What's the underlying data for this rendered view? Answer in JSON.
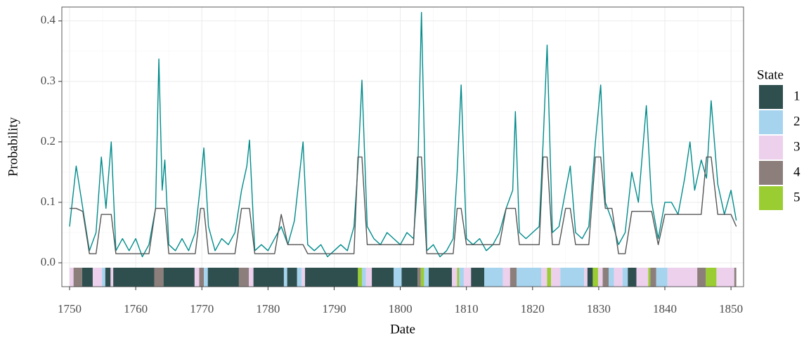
{
  "chart_data": {
    "type": "line",
    "xlabel": "Date",
    "ylabel": "Probability",
    "xlim": [
      1748.83,
      1851.9
    ],
    "ylim": [
      -0.0395,
      0.423
    ],
    "xticks": [
      1750,
      1760,
      1770,
      1780,
      1790,
      1800,
      1810,
      1820,
      1830,
      1840,
      1850
    ],
    "yticks": [
      {
        "value": 0,
        "label": "0.0"
      },
      0.1,
      0.2,
      0.3,
      0.4
    ],
    "x_minor_ticks": [
      1755,
      1765,
      1775,
      1785,
      1795,
      1805,
      1815,
      1825,
      1835,
      1845
    ],
    "y_minor_ticks": [
      0.05,
      0.15,
      0.25,
      0.35
    ],
    "grid": true,
    "x": [
      1750,
      1751,
      1752,
      1753,
      1754,
      1754.8,
      1755.5,
      1756.3,
      1757,
      1758,
      1759,
      1760,
      1761,
      1762,
      1763,
      1763.5,
      1764,
      1764.4,
      1765,
      1766,
      1767,
      1768,
      1769,
      1769.8,
      1770.3,
      1771,
      1772,
      1773,
      1774,
      1775,
      1776,
      1776.8,
      1777.2,
      1778,
      1779,
      1780,
      1781,
      1782,
      1783,
      1784,
      1785.3,
      1786,
      1787,
      1788,
      1789,
      1790,
      1791,
      1792,
      1793,
      1793.6,
      1794.2,
      1795,
      1796,
      1797,
      1798,
      1799,
      1800,
      1801,
      1802,
      1802.6,
      1803.2,
      1804,
      1805,
      1806,
      1807,
      1808,
      1808.6,
      1809.2,
      1810,
      1811,
      1812,
      1813,
      1814,
      1815,
      1816,
      1817,
      1817.4,
      1818,
      1819,
      1820,
      1821,
      1821.6,
      1822.2,
      1823,
      1824,
      1825,
      1825.7,
      1826.5,
      1827.5,
      1828.5,
      1829.5,
      1830.3,
      1831,
      1832,
      1833,
      1834,
      1835,
      1836,
      1837.2,
      1838,
      1839,
      1840,
      1841,
      1842,
      1843,
      1843.8,
      1844.5,
      1845.5,
      1846.3,
      1847,
      1848,
      1849,
      1850,
      1850.8
    ],
    "series": [
      {
        "color": "#008b8b",
        "values": [
          0.06,
          0.16,
          0.09,
          0.02,
          0.05,
          0.175,
          0.09,
          0.2,
          0.02,
          0.04,
          0.02,
          0.04,
          0.01,
          0.03,
          0.09,
          0.337,
          0.12,
          0.17,
          0.03,
          0.02,
          0.04,
          0.02,
          0.05,
          0.13,
          0.19,
          0.06,
          0.02,
          0.04,
          0.03,
          0.05,
          0.12,
          0.16,
          0.203,
          0.02,
          0.03,
          0.02,
          0.04,
          0.06,
          0.03,
          0.07,
          0.2,
          0.03,
          0.02,
          0.03,
          0.01,
          0.02,
          0.03,
          0.02,
          0.06,
          0.16,
          0.302,
          0.06,
          0.04,
          0.03,
          0.05,
          0.04,
          0.03,
          0.05,
          0.04,
          0.13,
          0.414,
          0.02,
          0.03,
          0.01,
          0.02,
          0.04,
          0.15,
          0.294,
          0.04,
          0.03,
          0.04,
          0.02,
          0.03,
          0.05,
          0.09,
          0.12,
          0.25,
          0.05,
          0.04,
          0.05,
          0.06,
          0.2,
          0.36,
          0.05,
          0.06,
          0.12,
          0.16,
          0.05,
          0.04,
          0.06,
          0.2,
          0.294,
          0.1,
          0.07,
          0.03,
          0.05,
          0.15,
          0.1,
          0.26,
          0.1,
          0.04,
          0.1,
          0.1,
          0.08,
          0.14,
          0.2,
          0.12,
          0.17,
          0.14,
          0.268,
          0.13,
          0.08,
          0.12,
          0.07
        ]
      },
      {
        "color": "#555555",
        "values": [
          0.09,
          0.09,
          0.085,
          0.015,
          0.015,
          0.08,
          0.08,
          0.08,
          0.015,
          0.015,
          0.015,
          0.015,
          0.015,
          0.015,
          0.09,
          0.09,
          0.09,
          0.09,
          0.015,
          0.015,
          0.015,
          0.015,
          0.015,
          0.09,
          0.09,
          0.015,
          0.015,
          0.015,
          0.015,
          0.015,
          0.09,
          0.09,
          0.09,
          0.015,
          0.015,
          0.015,
          0.015,
          0.08,
          0.03,
          0.03,
          0.03,
          0.015,
          0.015,
          0.015,
          0.015,
          0.015,
          0.015,
          0.015,
          0.015,
          0.175,
          0.175,
          0.03,
          0.03,
          0.03,
          0.03,
          0.03,
          0.03,
          0.03,
          0.03,
          0.175,
          0.175,
          0.015,
          0.015,
          0.015,
          0.015,
          0.015,
          0.09,
          0.09,
          0.03,
          0.03,
          0.03,
          0.03,
          0.03,
          0.03,
          0.09,
          0.09,
          0.09,
          0.03,
          0.03,
          0.03,
          0.03,
          0.175,
          0.175,
          0.03,
          0.03,
          0.09,
          0.09,
          0.03,
          0.03,
          0.03,
          0.175,
          0.175,
          0.09,
          0.09,
          0.015,
          0.015,
          0.085,
          0.085,
          0.085,
          0.085,
          0.03,
          0.08,
          0.08,
          0.08,
          0.08,
          0.08,
          0.08,
          0.08,
          0.175,
          0.175,
          0.08,
          0.08,
          0.08,
          0.06
        ]
      }
    ],
    "state_bands": {
      "starts": [
        1750.0,
        1750.6,
        1751.9,
        1753.5,
        1754.9,
        1755.4,
        1756.2,
        1756.6,
        1762.8,
        1764.2,
        1768.9,
        1769.6,
        1770.3,
        1770.9,
        1775.6,
        1777.1,
        1777.8,
        1782.4,
        1782.9,
        1784.4,
        1785.1,
        1785.6,
        1793.6,
        1794.2,
        1794.8,
        1795.7,
        1799.0,
        1800.2,
        1802.6,
        1803.1,
        1803.6,
        1804.3,
        1807.8,
        1808.6,
        1808.9,
        1809.6,
        1810.7,
        1812.7,
        1815.5,
        1816.6,
        1817.6,
        1821.3,
        1822.2,
        1822.8,
        1824.2,
        1827.8,
        1828.3,
        1829.1,
        1829.9,
        1830.6,
        1831.5,
        1832.3,
        1833.6,
        1834.4,
        1835.7,
        1837.5,
        1837.8,
        1838.7,
        1840.4,
        1844.9,
        1846.2,
        1847.8,
        1850.5
      ],
      "ends": [
        1750.6,
        1751.9,
        1753.5,
        1754.9,
        1755.4,
        1756.2,
        1756.6,
        1762.8,
        1764.2,
        1768.9,
        1769.6,
        1770.3,
        1770.9,
        1775.6,
        1777.1,
        1777.8,
        1782.4,
        1782.9,
        1784.4,
        1785.1,
        1785.6,
        1793.6,
        1794.2,
        1794.8,
        1795.7,
        1799.0,
        1800.2,
        1802.6,
        1803.1,
        1803.6,
        1804.3,
        1807.8,
        1808.6,
        1808.9,
        1809.6,
        1810.7,
        1812.7,
        1815.5,
        1816.6,
        1817.6,
        1821.3,
        1822.2,
        1822.8,
        1824.2,
        1827.8,
        1828.3,
        1829.1,
        1829.9,
        1830.6,
        1831.5,
        1832.3,
        1833.6,
        1834.4,
        1835.7,
        1837.5,
        1837.8,
        1838.7,
        1840.4,
        1844.9,
        1846.2,
        1847.8,
        1850.5,
        1850.8
      ],
      "states": [
        3,
        4,
        1,
        3,
        2,
        1,
        3,
        1,
        4,
        1,
        3,
        4,
        2,
        1,
        4,
        3,
        1,
        2,
        1,
        2,
        3,
        1,
        5,
        2,
        3,
        1,
        2,
        1,
        4,
        5,
        2,
        1,
        3,
        5,
        2,
        3,
        1,
        2,
        3,
        4,
        2,
        3,
        5,
        3,
        2,
        3,
        1,
        5,
        3,
        4,
        2,
        3,
        2,
        1,
        3,
        5,
        4,
        2,
        3,
        4,
        5,
        3,
        4
      ]
    },
    "legend": {
      "title": "State",
      "labels": [
        "1",
        "2",
        "3",
        "4",
        "5"
      ],
      "colors": [
        "#2f4f4f",
        "#a6d3ee",
        "#ecd0ec",
        "#8c7f7b",
        "#9acd32"
      ]
    }
  }
}
